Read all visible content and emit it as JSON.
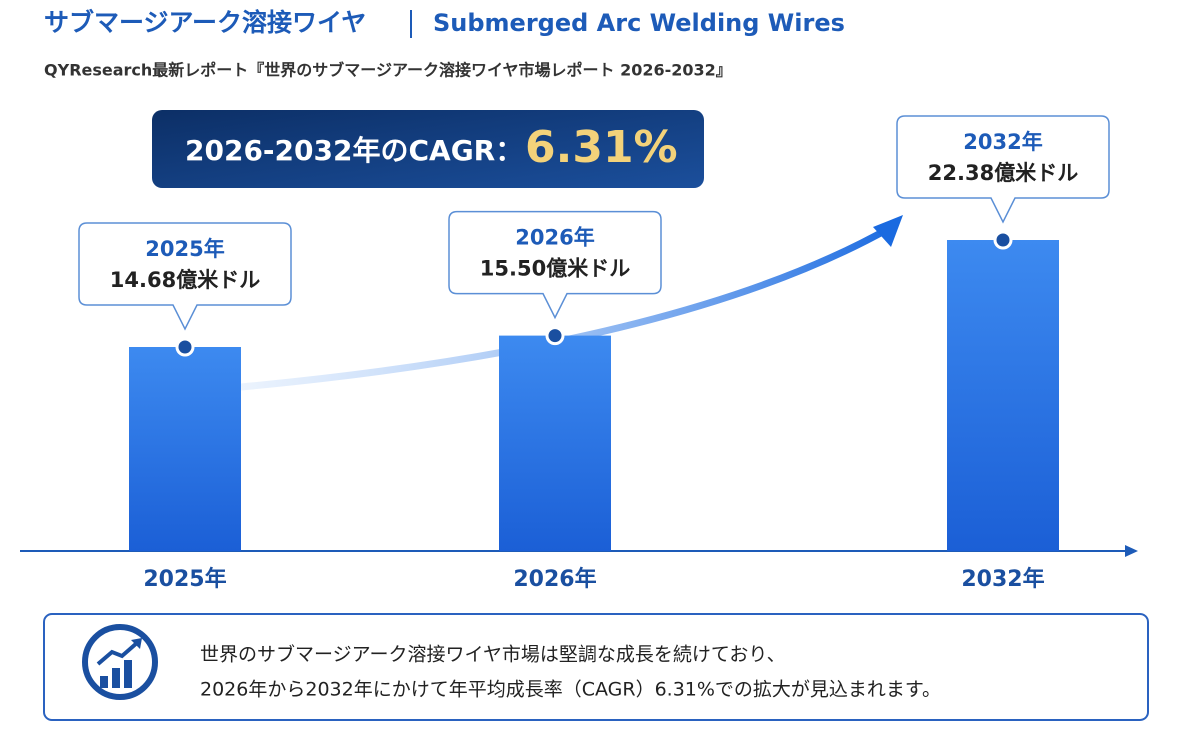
{
  "chart_data": {
    "type": "bar",
    "title_ja": "サブマージアーク溶接ワイヤ",
    "title_en": "Submerged Arc Welding Wires",
    "subtitle": "QYResearch最新レポート『世界のサブマージアーク溶接ワイヤ市場レポート 2026-2032』",
    "cagr_label": "2026-2032年のCAGR：",
    "cagr_value": "6.31%",
    "categories": [
      "2025年",
      "2026年",
      "2032年"
    ],
    "values": [
      14.68,
      15.5,
      22.38
    ],
    "value_labels": [
      "14.68億米ドル",
      "15.50億米ドル",
      "22.38億米ドル"
    ],
    "color": "#2f7be6",
    "summary": [
      "世界のサブマージアーク溶接ワイヤ市場は堅調な成長を続けており、",
      "2026年から2032年にかけて年平均成長率（CAGR）6.31%での拡大が見込まれます。"
    ]
  }
}
